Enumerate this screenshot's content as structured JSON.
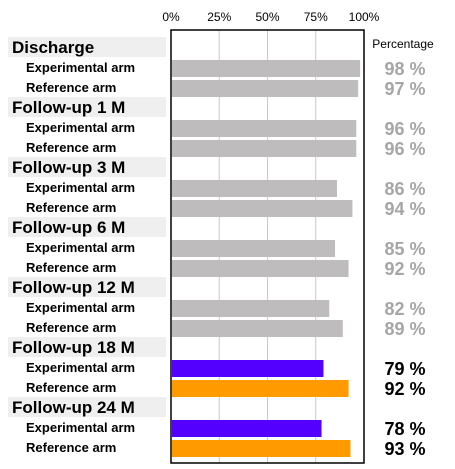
{
  "chart_data": {
    "type": "bar",
    "orientation": "horizontal",
    "x_ticks": [
      "0%",
      "25%",
      "50%",
      "75%",
      "100%"
    ],
    "xlim": [
      0,
      100
    ],
    "grid": true,
    "value_header": "Percentage",
    "colors": {
      "muted_bar": "#bfbcbd",
      "muted_text": "#a6a6a6",
      "experimental": "#5400ff",
      "reference": "#ff9a00",
      "highlight_text": "#000000",
      "group_band": "#efefef"
    },
    "groups": [
      {
        "name": "Discharge",
        "highlight": false,
        "rows": [
          {
            "arm": "Experimental arm",
            "value": 98,
            "label": "98 %"
          },
          {
            "arm": "Reference arm",
            "value": 97,
            "label": "97 %"
          }
        ]
      },
      {
        "name": "Follow-up 1 M",
        "highlight": false,
        "rows": [
          {
            "arm": "Experimental arm",
            "value": 96,
            "label": "96 %"
          },
          {
            "arm": "Reference arm",
            "value": 96,
            "label": "96 %"
          }
        ]
      },
      {
        "name": "Follow-up 3 M",
        "highlight": false,
        "rows": [
          {
            "arm": "Experimental arm",
            "value": 86,
            "label": "86 %"
          },
          {
            "arm": "Reference arm",
            "value": 94,
            "label": "94 %"
          }
        ]
      },
      {
        "name": "Follow-up 6 M",
        "highlight": false,
        "rows": [
          {
            "arm": "Experimental arm",
            "value": 85,
            "label": "85 %"
          },
          {
            "arm": "Reference arm",
            "value": 92,
            "label": "92 %"
          }
        ]
      },
      {
        "name": "Follow-up 12 M",
        "highlight": false,
        "rows": [
          {
            "arm": "Experimental arm",
            "value": 82,
            "label": "82 %"
          },
          {
            "arm": "Reference arm",
            "value": 89,
            "label": "89 %"
          }
        ]
      },
      {
        "name": "Follow-up 18 M",
        "highlight": true,
        "rows": [
          {
            "arm": "Experimental arm",
            "value": 79,
            "label": "79 %"
          },
          {
            "arm": "Reference arm",
            "value": 92,
            "label": "92 %"
          }
        ]
      },
      {
        "name": "Follow-up 24 M",
        "highlight": true,
        "rows": [
          {
            "arm": "Experimental arm",
            "value": 78,
            "label": "78 %"
          },
          {
            "arm": "Reference arm",
            "value": 93,
            "label": "93 %"
          }
        ]
      }
    ]
  }
}
